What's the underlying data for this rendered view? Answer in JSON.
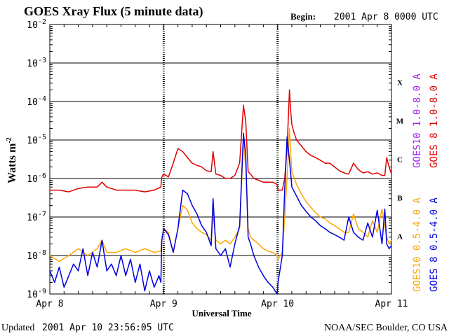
{
  "header": {
    "title": "GOES Xray Flux (5 minute data)",
    "begin_label": "Begin:",
    "begin_value": "2001 Apr 8 0000 UTC"
  },
  "footer": {
    "updated_label": "Updated",
    "updated_value": "2001 Apr 10 23:56:05 UTC",
    "credit": "NOAA/SEC Boulder, CO USA"
  },
  "colors": {
    "goes10_long": "#a020f0",
    "goes8_long": "#e00000",
    "goes10_short": "#ffa500",
    "goes8_short": "#0000e0"
  },
  "chart_data": {
    "type": "line",
    "title": "GOES Xray Flux (5 minute data)",
    "xlabel": "Universal Time",
    "ylabel": "Watts m",
    "ylabel_sup": "-2",
    "y_scale": "log",
    "ylim": [
      1e-09,
      0.01
    ],
    "y_ticks": [
      {
        "base": "10",
        "exp": "-9"
      },
      {
        "base": "10",
        "exp": "-8"
      },
      {
        "base": "10",
        "exp": "-7"
      },
      {
        "base": "10",
        "exp": "-6"
      },
      {
        "base": "10",
        "exp": "-5"
      },
      {
        "base": "10",
        "exp": "-4"
      },
      {
        "base": "10",
        "exp": "-3"
      },
      {
        "base": "10",
        "exp": "-2"
      }
    ],
    "x_unit": "hours since 2001 Apr 8 0000 UTC",
    "xlim": [
      0,
      72
    ],
    "x_ticks": [
      {
        "x": 0,
        "label": "Apr 8"
      },
      {
        "x": 24,
        "label": "Apr 9"
      },
      {
        "x": 48,
        "label": "Apr 10"
      },
      {
        "x": 72,
        "label": "Apr 11"
      }
    ],
    "flare_classes": [
      {
        "label": "A",
        "level": 1e-08
      },
      {
        "label": "B",
        "level": 1e-07
      },
      {
        "label": "C",
        "level": 1e-06
      },
      {
        "label": "M",
        "level": 1e-05
      },
      {
        "label": "X",
        "level": 0.0001
      }
    ],
    "grid": "horizontal at each decade",
    "legend_placement": "right (rotated text)",
    "series": [
      {
        "name": "GOES10 1.0-8.0 A",
        "color": "#a020f0",
        "x": [],
        "y": []
      },
      {
        "name": "GOES 8 1.0-8.0 A",
        "color": "#e00000",
        "x": [
          0,
          2,
          4,
          6,
          8,
          10,
          11,
          12,
          13,
          14,
          16,
          18,
          20,
          22,
          23.4,
          23.6,
          24,
          25,
          26,
          27,
          28,
          29,
          30,
          31,
          32,
          33,
          34,
          34.4,
          35,
          36,
          37,
          38,
          39,
          40,
          40.8,
          41.3,
          41.8,
          42.3,
          43,
          44,
          45,
          46,
          47,
          47.9,
          48.1,
          49,
          49.5,
          50,
          50.5,
          50.8,
          51,
          51.5,
          52,
          53,
          54,
          55,
          56,
          57,
          58,
          59,
          60,
          61,
          62,
          63,
          64,
          65,
          66,
          67,
          68,
          69,
          70,
          70.6,
          71,
          71.5,
          72
        ],
        "y": [
          5e-07,
          5e-07,
          4.5e-07,
          5.5e-07,
          6e-07,
          6e-07,
          8e-07,
          6e-07,
          5.5e-07,
          5e-07,
          5e-07,
          5e-07,
          4.5e-07,
          5e-07,
          6e-07,
          1.1e-06,
          1.3e-06,
          1.1e-06,
          2.5e-06,
          6e-06,
          5e-06,
          3.5e-06,
          2.5e-06,
          2.2e-06,
          2e-06,
          1.6e-06,
          1.5e-06,
          5e-06,
          1.3e-06,
          1.2e-06,
          1e-06,
          1e-06,
          1.2e-06,
          2.5e-06,
          8e-05,
          3e-05,
          1.5e-06,
          1.3e-06,
          1e-06,
          9e-07,
          8e-07,
          8e-07,
          8e-07,
          7e-07,
          5e-07,
          5e-07,
          1e-06,
          6e-06,
          0.0002,
          5e-05,
          2.5e-05,
          1.5e-05,
          1e-05,
          7e-06,
          5e-06,
          4e-06,
          3.5e-06,
          3e-06,
          2.5e-06,
          2.5e-06,
          2e-06,
          1.6e-06,
          1.4e-06,
          1.3e-06,
          2.5e-06,
          1.7e-06,
          1.4e-06,
          1.5e-06,
          1.3e-06,
          1.4e-06,
          1.2e-06,
          1.2e-06,
          3.5e-06,
          2e-06,
          1.3e-06
        ]
      },
      {
        "name": "GOES10 0.5-4.0 A",
        "color": "#ffa500",
        "x": [
          0,
          2,
          4,
          6,
          8,
          10,
          11,
          12,
          14,
          16,
          18,
          20,
          22,
          23.4,
          23.6,
          24,
          25,
          26,
          27,
          28,
          29,
          30,
          31,
          32,
          33,
          34,
          34.4,
          35,
          36,
          37,
          38,
          39,
          40,
          40.8,
          41.3,
          41.8,
          42.3,
          43,
          44,
          45,
          46,
          47,
          47.9,
          48.1,
          49,
          49.5,
          50,
          50.5,
          50.8,
          51,
          52,
          53,
          54,
          55,
          56,
          57,
          58,
          59,
          60,
          61,
          62,
          63,
          64,
          65,
          66,
          67,
          68,
          69,
          70,
          71,
          71.5,
          72
        ],
        "y": [
          1e-08,
          7e-09,
          1e-08,
          1.5e-08,
          1e-08,
          1.5e-08,
          2.5e-08,
          1.2e-08,
          1.2e-08,
          1.5e-08,
          1.2e-08,
          1.5e-08,
          1.2e-08,
          1.3e-08,
          2.5e-08,
          5e-08,
          4e-08,
          1.2e-08,
          5e-08,
          2e-07,
          1.5e-07,
          7e-08,
          5e-08,
          4e-08,
          3.5e-08,
          2.5e-08,
          1.2e-07,
          2.5e-08,
          2e-08,
          2.5e-08,
          2e-08,
          3e-08,
          5e-08,
          1e-05,
          2e-06,
          5e-08,
          3e-08,
          2.5e-08,
          2e-08,
          1.5e-08,
          1.3e-08,
          1.2e-08,
          1e-08,
          8e-09,
          1.2e-08,
          1e-07,
          1e-06,
          2e-05,
          4e-06,
          1.5e-06,
          7e-07,
          4e-07,
          2.5e-07,
          1.8e-07,
          1.3e-07,
          1e-07,
          9e-08,
          7e-08,
          6e-08,
          5e-08,
          4e-08,
          4e-08,
          1.2e-07,
          5e-08,
          4e-08,
          3e-08,
          8e-08,
          4e-08,
          1.6e-07,
          3e-08,
          2e-08,
          2.5e-08
        ]
      },
      {
        "name": "GOES 8 0.5-4.0 A",
        "color": "#0000e0",
        "x": [
          0,
          1,
          2,
          3,
          4,
          5,
          6,
          7,
          8,
          9,
          10,
          11,
          12,
          13,
          14,
          15,
          16,
          17,
          18,
          19,
          20,
          21,
          22,
          23,
          23.4,
          23.6,
          24,
          25,
          26,
          27,
          28,
          29,
          30,
          31,
          32,
          33,
          34,
          34.4,
          35,
          36,
          37,
          38,
          39,
          40,
          40.8,
          41.3,
          41.8,
          42.3,
          43,
          44,
          45,
          46,
          47,
          47.9,
          48.1,
          49,
          49.5,
          50,
          50.5,
          50.8,
          51,
          52,
          53,
          54,
          55,
          56,
          57,
          58,
          59,
          60,
          61,
          62,
          63,
          64,
          65,
          66,
          67,
          68,
          69,
          70,
          70.6,
          71,
          71.5,
          72
        ],
        "y": [
          4e-09,
          2e-09,
          5e-09,
          1.5e-09,
          3e-09,
          6e-09,
          4e-09,
          1.5e-08,
          3e-09,
          1.2e-08,
          5e-09,
          2.5e-08,
          4e-09,
          6e-09,
          3e-09,
          1e-08,
          3e-09,
          8e-09,
          2e-09,
          6e-09,
          1.2e-09,
          4e-09,
          1.5e-09,
          3e-09,
          2e-09,
          2.5e-08,
          5e-08,
          3.5e-08,
          1.2e-08,
          5e-08,
          5e-07,
          4e-07,
          2e-07,
          1.2e-07,
          6e-08,
          4e-08,
          1.8e-08,
          3e-07,
          1.5e-08,
          1e-08,
          1.5e-08,
          5e-09,
          2e-08,
          6e-08,
          1.5e-05,
          4e-06,
          3e-08,
          2e-08,
          1e-08,
          5e-09,
          3e-09,
          2e-09,
          1.5e-09,
          1e-09,
          2e-09,
          1e-08,
          5e-07,
          1.2e-05,
          3e-06,
          1.2e-06,
          6e-07,
          3.5e-07,
          2e-07,
          1.4e-07,
          1e-07,
          8e-08,
          6e-08,
          5e-08,
          4e-08,
          3.5e-08,
          3e-08,
          2.5e-08,
          1e-07,
          4e-08,
          3e-08,
          2.5e-08,
          7e-08,
          3e-08,
          1.5e-07,
          2e-08,
          1.6e-07,
          2e-08,
          1.5e-08,
          1.8e-08
        ]
      }
    ]
  }
}
